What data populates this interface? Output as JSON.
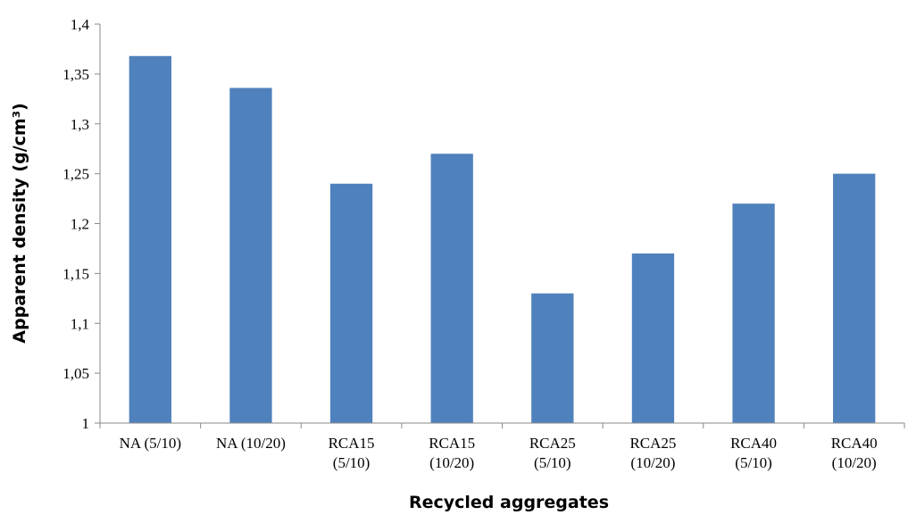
{
  "chart_data": {
    "type": "bar",
    "categories": [
      [
        "NA (5/10)"
      ],
      [
        "NA (10/20)"
      ],
      [
        "RCA15",
        "(5/10)"
      ],
      [
        "RCA15",
        "(10/20)"
      ],
      [
        "RCA25",
        "(5/10)"
      ],
      [
        "RCA25",
        "(10/20)"
      ],
      [
        "RCA40",
        "(5/10)"
      ],
      [
        "RCA40",
        "(10/20)"
      ]
    ],
    "values": [
      1.368,
      1.336,
      1.24,
      1.27,
      1.13,
      1.17,
      1.22,
      1.25
    ],
    "ylim": [
      1,
      1.4
    ],
    "yticks": [
      "1",
      "1,05",
      "1,1",
      "1,15",
      "1,2",
      "1,25",
      "1,3",
      "1,35",
      "1,4"
    ],
    "xlabel": "Recycled aggregates",
    "ylabel": "Apparent density (g/cm³)",
    "bar_color": "#4f81bd",
    "grid": false,
    "legend": "none"
  }
}
